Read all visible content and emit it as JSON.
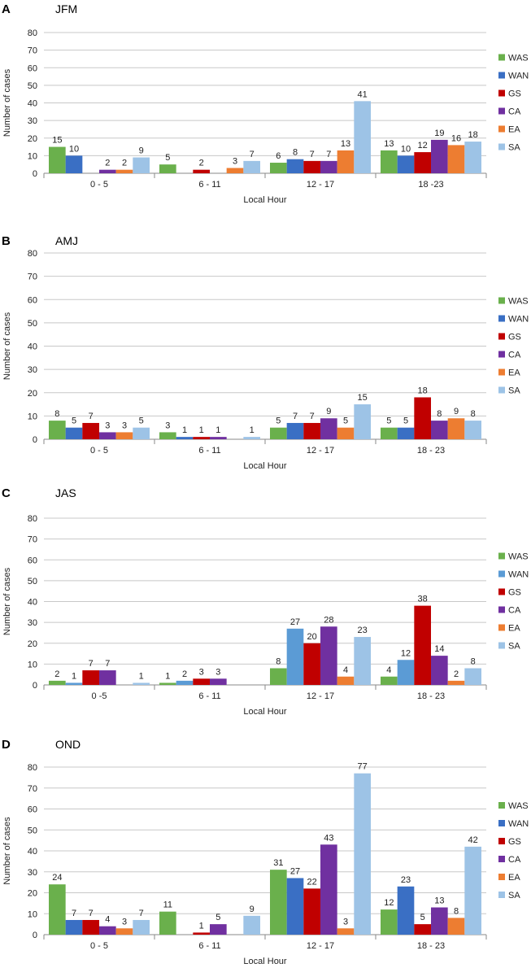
{
  "chart_data": [
    {
      "panel": "A",
      "type": "bar",
      "title": "JFM",
      "xlabel": "Local Hour",
      "ylabel": "Number of cases",
      "ylim": [
        0,
        80
      ],
      "yticks": [
        0,
        10,
        20,
        30,
        40,
        50,
        60,
        70,
        80
      ],
      "categories": [
        "0 - 5",
        "6 - 11",
        "12 - 17",
        "18 -23"
      ],
      "series": [
        {
          "name": "WAS",
          "color": "#6ab04c",
          "values": [
            15,
            5,
            6,
            13
          ]
        },
        {
          "name": "WAN",
          "color": "#3a6fc4",
          "values": [
            10,
            null,
            8,
            10
          ]
        },
        {
          "name": "GS",
          "color": "#c00000",
          "values": [
            null,
            2,
            7,
            12
          ]
        },
        {
          "name": "CA",
          "color": "#7030a0",
          "values": [
            2,
            null,
            7,
            19
          ]
        },
        {
          "name": "EA",
          "color": "#ed7d31",
          "values": [
            2,
            3,
            13,
            16
          ]
        },
        {
          "name": "SA",
          "color": "#9dc3e6",
          "values": [
            9,
            7,
            41,
            18
          ]
        }
      ]
    },
    {
      "panel": "B",
      "type": "bar",
      "title": "AMJ",
      "xlabel": "Local Hour",
      "ylabel": "Number of cases",
      "ylim": [
        0,
        80
      ],
      "yticks": [
        0,
        10,
        20,
        30,
        40,
        50,
        60,
        70,
        80
      ],
      "categories": [
        "0 - 5",
        "6 - 11",
        "12 - 17",
        "18 - 23"
      ],
      "series": [
        {
          "name": "WAS",
          "color": "#6ab04c",
          "values": [
            8,
            3,
            5,
            5
          ]
        },
        {
          "name": "WAN",
          "color": "#3a6fc4",
          "values": [
            5,
            1,
            7,
            5
          ]
        },
        {
          "name": "GS",
          "color": "#c00000",
          "values": [
            7,
            1,
            7,
            18
          ]
        },
        {
          "name": "CA",
          "color": "#7030a0",
          "values": [
            3,
            1,
            9,
            8
          ]
        },
        {
          "name": "EA",
          "color": "#ed7d31",
          "values": [
            3,
            null,
            5,
            9
          ]
        },
        {
          "name": "SA",
          "color": "#9dc3e6",
          "values": [
            5,
            1,
            15,
            8
          ]
        }
      ]
    },
    {
      "panel": "C",
      "type": "bar",
      "title": "JAS",
      "xlabel": "Local Hour",
      "ylabel": "Number of cases",
      "ylim": [
        0,
        80
      ],
      "yticks": [
        0,
        10,
        20,
        30,
        40,
        50,
        60,
        70,
        80
      ],
      "categories": [
        "0 -5",
        "6 - 11",
        "12 - 17",
        "18 - 23"
      ],
      "series": [
        {
          "name": "WAS",
          "color": "#6ab04c",
          "values": [
            2,
            1,
            8,
            4
          ]
        },
        {
          "name": "WAN",
          "color": "#5b9bd5",
          "values": [
            1,
            2,
            27,
            12
          ]
        },
        {
          "name": "GS",
          "color": "#c00000",
          "values": [
            7,
            3,
            20,
            38
          ]
        },
        {
          "name": "CA",
          "color": "#7030a0",
          "values": [
            7,
            3,
            28,
            14
          ]
        },
        {
          "name": "EA",
          "color": "#ed7d31",
          "values": [
            null,
            null,
            4,
            2
          ]
        },
        {
          "name": "SA",
          "color": "#9dc3e6",
          "values": [
            1,
            null,
            23,
            8
          ]
        }
      ]
    },
    {
      "panel": "D",
      "type": "bar",
      "title": "OND",
      "xlabel": "Local Hour",
      "ylabel": "Number of cases",
      "ylim": [
        0,
        80
      ],
      "yticks": [
        0,
        10,
        20,
        30,
        40,
        50,
        60,
        70,
        80
      ],
      "categories": [
        "0 - 5",
        "6 - 11",
        "12 - 17",
        "18 - 23"
      ],
      "series": [
        {
          "name": "WAS",
          "color": "#6ab04c",
          "values": [
            24,
            11,
            31,
            12
          ]
        },
        {
          "name": "WAN",
          "color": "#3a6fc4",
          "values": [
            7,
            null,
            27,
            23
          ]
        },
        {
          "name": "GS",
          "color": "#c00000",
          "values": [
            7,
            1,
            22,
            5
          ]
        },
        {
          "name": "CA",
          "color": "#7030a0",
          "values": [
            4,
            5,
            43,
            13
          ]
        },
        {
          "name": "EA",
          "color": "#ed7d31",
          "values": [
            3,
            null,
            3,
            8
          ]
        },
        {
          "name": "SA",
          "color": "#9dc3e6",
          "values": [
            7,
            9,
            77,
            42
          ]
        }
      ]
    }
  ]
}
